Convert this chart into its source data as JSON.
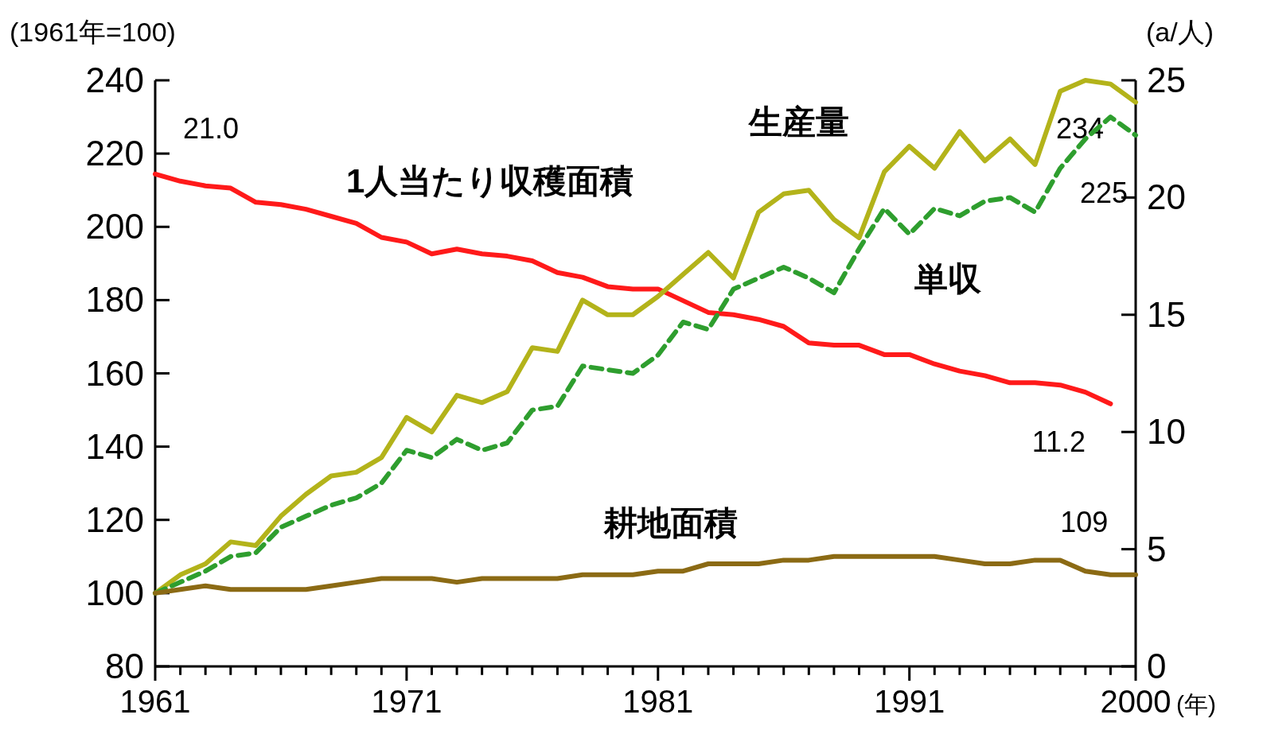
{
  "chart_data": {
    "type": "line",
    "ylabel": "(1961年=100)",
    "y2label": "(a/人)",
    "xlabel": "(年)",
    "xlim": [
      1961,
      2000
    ],
    "ylim": [
      80,
      240
    ],
    "yticks": [
      80,
      100,
      120,
      140,
      160,
      180,
      200,
      220,
      240
    ],
    "y2lim": [
      0,
      25
    ],
    "y2ticks": [
      0,
      5,
      10,
      15,
      20,
      25
    ],
    "xticks": [
      1961,
      {
        "value": 1962,
        "label": null
      },
      {
        "value": 1963,
        "label": null
      },
      {
        "value": 1964,
        "label": null
      },
      {
        "value": 1965,
        "label": null
      },
      {
        "value": 1966,
        "label": null
      },
      {
        "value": 1967,
        "label": null
      },
      {
        "value": 1968,
        "label": null
      },
      {
        "value": 1969,
        "label": null
      },
      {
        "value": 1970,
        "label": null
      },
      1971,
      {
        "value": 1972,
        "label": null
      },
      {
        "value": 1973,
        "label": null
      },
      {
        "value": 1974,
        "label": null
      },
      {
        "value": 1975,
        "label": null
      },
      {
        "value": 1976,
        "label": null
      },
      {
        "value": 1977,
        "label": null
      },
      {
        "value": 1978,
        "label": null
      },
      {
        "value": 1979,
        "label": null
      },
      {
        "value": 1980,
        "label": null
      },
      1981,
      {
        "value": 1982,
        "label": null
      },
      {
        "value": 1983,
        "label": null
      },
      {
        "value": 1984,
        "label": null
      },
      {
        "value": 1985,
        "label": null
      },
      {
        "value": 1986,
        "label": null
      },
      {
        "value": 1987,
        "label": null
      },
      {
        "value": 1988,
        "label": null
      },
      {
        "value": 1989,
        "label": null
      },
      {
        "value": 1990,
        "label": null
      },
      1991,
      {
        "value": 1992,
        "label": null
      },
      {
        "value": 1993,
        "label": null
      },
      {
        "value": 1994,
        "label": null
      },
      {
        "value": 1995,
        "label": null
      },
      {
        "value": 1996,
        "label": null
      },
      {
        "value": 1997,
        "label": null
      },
      {
        "value": 1998,
        "label": null
      },
      {
        "value": 1999,
        "label": null
      },
      2000
    ],
    "series": [
      {
        "name": "1人当たり収穫面積",
        "color": "#ff1a1a",
        "axis": "y2",
        "x": [
          1961,
          1962,
          1963,
          1964,
          1965,
          1966,
          1967,
          1968,
          1969,
          1970,
          1971,
          1972,
          1973,
          1974,
          1975,
          1976,
          1977,
          1978,
          1979,
          1980,
          1981,
          1982,
          1983,
          1984,
          1985,
          1986,
          1987,
          1988,
          1989,
          1990,
          1991,
          1992,
          1993,
          1994,
          1995,
          1996,
          1997,
          1998,
          1999
        ],
        "values": [
          21.0,
          20.7,
          20.5,
          20.4,
          19.8,
          19.7,
          19.5,
          19.2,
          18.9,
          18.3,
          18.1,
          17.6,
          17.8,
          17.6,
          17.5,
          17.3,
          16.8,
          16.6,
          16.2,
          16.1,
          16.1,
          15.6,
          15.1,
          15.0,
          14.8,
          14.5,
          13.8,
          13.7,
          13.7,
          13.3,
          13.3,
          12.9,
          12.6,
          12.4,
          12.1,
          12.1,
          12.0,
          11.7,
          11.2
        ],
        "value_labels": [
          "21.0",
          null,
          null,
          null,
          null,
          null,
          null,
          null,
          null,
          null,
          null,
          null,
          null,
          null,
          null,
          null,
          null,
          null,
          null,
          null,
          null,
          null,
          null,
          null,
          null,
          null,
          null,
          null,
          null,
          null,
          null,
          null,
          null,
          null,
          null,
          null,
          null,
          null,
          "11.2"
        ]
      },
      {
        "name": "生産量",
        "color": "#b3b31a",
        "x": [
          1961,
          1962,
          1963,
          1964,
          1965,
          1966,
          1967,
          1968,
          1969,
          1970,
          1971,
          1972,
          1973,
          1974,
          1975,
          1976,
          1977,
          1978,
          1979,
          1980,
          1981,
          1982,
          1983,
          1984,
          1985,
          1986,
          1987,
          1988,
          1989,
          1990,
          1991,
          1992,
          1993,
          1994,
          1995,
          1996,
          1997,
          1998,
          1999,
          2000
        ],
        "values": [
          100,
          105,
          108,
          114,
          113,
          121,
          127,
          132,
          133,
          137,
          148,
          144,
          154,
          152,
          155,
          167,
          166,
          180,
          176,
          176,
          181,
          187,
          193,
          186,
          204,
          209,
          210,
          202,
          197,
          215,
          222,
          216,
          226,
          218,
          224,
          217,
          237,
          240,
          239,
          234
        ],
        "value_labels": [
          null,
          null,
          null,
          null,
          null,
          null,
          null,
          null,
          null,
          null,
          null,
          null,
          null,
          null,
          null,
          null,
          null,
          null,
          null,
          null,
          null,
          null,
          null,
          null,
          null,
          null,
          null,
          null,
          null,
          null,
          null,
          null,
          null,
          null,
          null,
          null,
          null,
          null,
          null,
          "234"
        ]
      },
      {
        "name": "単収",
        "color": "#2e9e2e",
        "line_style": "dashed",
        "x": [
          1961,
          1962,
          1963,
          1964,
          1965,
          1966,
          1967,
          1968,
          1969,
          1970,
          1971,
          1972,
          1973,
          1974,
          1975,
          1976,
          1977,
          1978,
          1979,
          1980,
          1981,
          1982,
          1983,
          1984,
          1985,
          1986,
          1987,
          1988,
          1989,
          1990,
          1991,
          1992,
          1993,
          1994,
          1995,
          1996,
          1997,
          1998,
          1999,
          2000
        ],
        "values": [
          100,
          103,
          106,
          110,
          111,
          118,
          121,
          124,
          126,
          130,
          139,
          137,
          142,
          139,
          141,
          150,
          151,
          162,
          161,
          160,
          165,
          174,
          172,
          183,
          186,
          189,
          186,
          182,
          194,
          205,
          198,
          205,
          203,
          207,
          208,
          204,
          216,
          224,
          230,
          225
        ],
        "value_labels": [
          null,
          null,
          null,
          null,
          null,
          null,
          null,
          null,
          null,
          null,
          null,
          null,
          null,
          null,
          null,
          null,
          null,
          null,
          null,
          null,
          null,
          null,
          null,
          null,
          null,
          null,
          null,
          null,
          null,
          null,
          null,
          null,
          null,
          null,
          null,
          null,
          null,
          null,
          null,
          "225"
        ]
      },
      {
        "name": "耕地面積",
        "color": "#8b6a14",
        "x": [
          1961,
          1962,
          1963,
          1964,
          1965,
          1966,
          1967,
          1968,
          1969,
          1970,
          1971,
          1972,
          1973,
          1974,
          1975,
          1976,
          1977,
          1978,
          1979,
          1980,
          1981,
          1982,
          1983,
          1984,
          1985,
          1986,
          1987,
          1988,
          1989,
          1990,
          1991,
          1992,
          1993,
          1994,
          1995,
          1996,
          1997,
          1998,
          1999,
          2000
        ],
        "values": [
          100,
          101,
          102,
          101,
          101,
          101,
          101,
          102,
          103,
          104,
          104,
          104,
          103,
          104,
          104,
          104,
          104,
          105,
          105,
          105,
          106,
          106,
          108,
          108,
          108,
          109,
          109,
          110,
          110,
          110,
          110,
          110,
          109,
          108,
          108,
          109,
          109,
          106,
          105,
          105
        ],
        "value_labels": [
          null,
          null,
          null,
          null,
          null,
          null,
          null,
          null,
          null,
          null,
          null,
          null,
          null,
          null,
          null,
          null,
          null,
          null,
          null,
          null,
          null,
          null,
          null,
          null,
          null,
          null,
          null,
          null,
          null,
          null,
          null,
          null,
          null,
          null,
          null,
          null,
          "109",
          null,
          null,
          null
        ]
      }
    ]
  }
}
